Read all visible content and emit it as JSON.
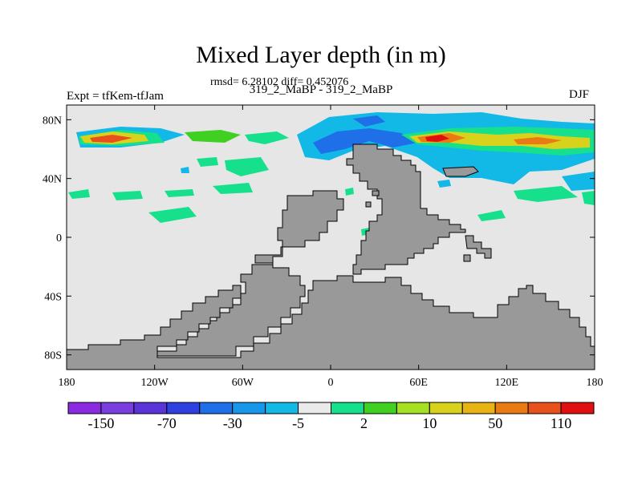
{
  "title": "Mixed Layer depth (in m)",
  "stats": "rmsd= 6.28102 diff= 0.452076",
  "subtitle": "319_2_MaBP - 319_2_MaBP",
  "experiment": "Expt = tfKem-tfJam",
  "season": "DJF",
  "map": {
    "ocean_color": "#e6e6e6",
    "land_color": "#999999",
    "lon_range": [
      -180,
      180
    ],
    "lat_range": [
      -90,
      90
    ],
    "x_ticks": [
      {
        "lon": -180,
        "label": "180"
      },
      {
        "lon": -120,
        "label": "120W"
      },
      {
        "lon": -60,
        "label": "60W"
      },
      {
        "lon": 0,
        "label": "0"
      },
      {
        "lon": 60,
        "label": "60E"
      },
      {
        "lon": 120,
        "label": "120E"
      },
      {
        "lon": 180,
        "label": "180"
      }
    ],
    "y_ticks": [
      {
        "lat": 80,
        "label": "80N"
      },
      {
        "lat": 40,
        "label": "40N"
      },
      {
        "lat": 0,
        "label": "0"
      },
      {
        "lat": -40,
        "label": "40S"
      },
      {
        "lat": -80,
        "label": "80S"
      }
    ]
  },
  "colorbar": {
    "colors": [
      "#8a2be2",
      "#7a3ee0",
      "#5a34d8",
      "#2f3fe0",
      "#1f6fe8",
      "#1896ea",
      "#12b8e6",
      "#eaeaea",
      "#17e08c",
      "#3fd021",
      "#a6e022",
      "#d8d21c",
      "#e8b414",
      "#e97a14",
      "#e8501c",
      "#e01010"
    ],
    "labels": [
      "-150",
      "-70",
      "-30",
      "-5",
      "2",
      "10",
      "50",
      "110"
    ]
  }
}
